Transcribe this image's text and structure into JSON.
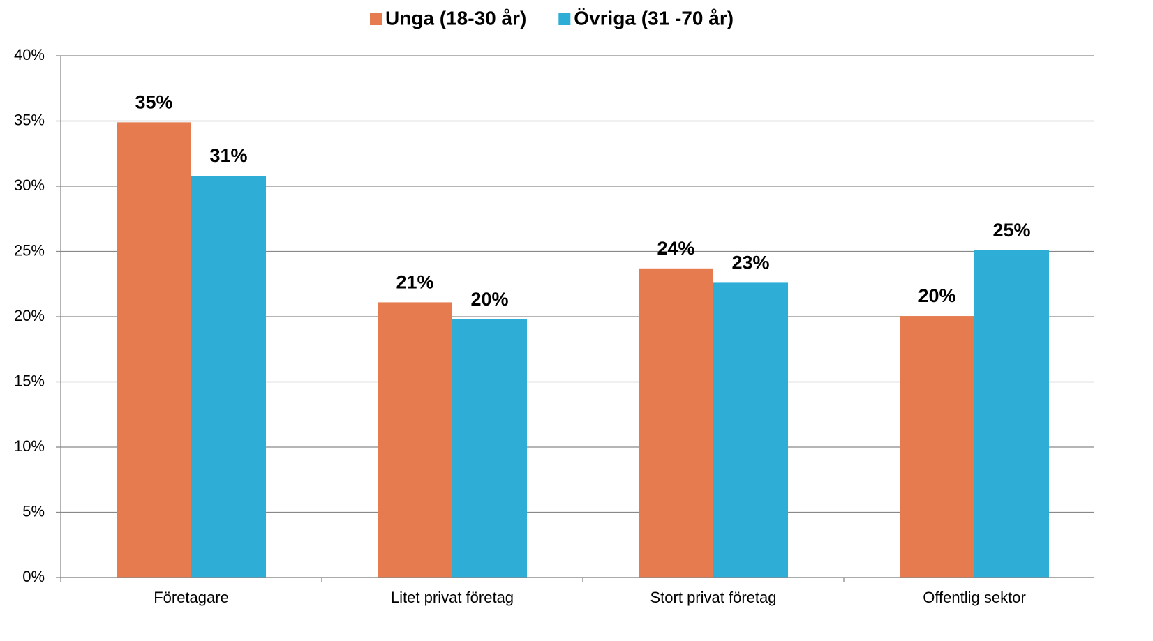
{
  "chart_data": {
    "type": "bar",
    "categories": [
      "Företagare",
      "Litet privat företag",
      "Stort privat företag",
      "Offentlig sektor"
    ],
    "series": [
      {
        "name": "Unga (18-30 år)",
        "color": "#e57b4f",
        "values": [
          34.9,
          21.1,
          23.7,
          20.05
        ],
        "value_labels": [
          "35%",
          "21%",
          "24%",
          "20%"
        ]
      },
      {
        "name": "Övriga (31 -70 år)",
        "color": "#2eaed6",
        "values": [
          30.8,
          19.8,
          22.6,
          25.1
        ],
        "value_labels": [
          "31%",
          "20%",
          "23%",
          "25%"
        ]
      }
    ],
    "ylim": [
      0,
      40
    ],
    "yticks": [
      {
        "value": 0,
        "label": "0%"
      },
      {
        "value": 5,
        "label": "5%"
      },
      {
        "value": 10,
        "label": "10%"
      },
      {
        "value": 15,
        "label": "15%"
      },
      {
        "value": 20,
        "label": "20%"
      },
      {
        "value": 25,
        "label": "25%"
      },
      {
        "value": 30,
        "label": "30%"
      },
      {
        "value": 35,
        "label": "35%"
      },
      {
        "value": 40,
        "label": "40%"
      }
    ],
    "grid": true,
    "legend": "top"
  }
}
